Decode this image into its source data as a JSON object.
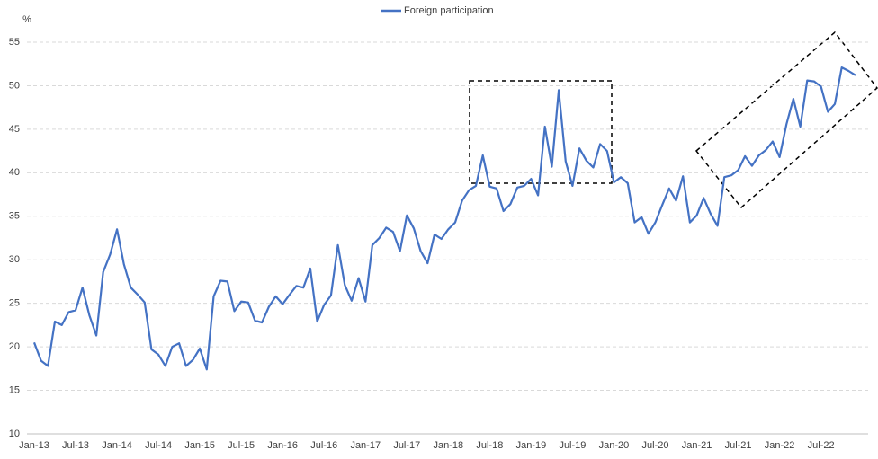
{
  "chart_data": {
    "type": "line",
    "y_label": "%",
    "categories": [
      "Jan-13",
      null,
      null,
      null,
      null,
      null,
      "Jul-13",
      null,
      null,
      null,
      null,
      null,
      "Jan-14",
      null,
      null,
      null,
      null,
      null,
      "Jul-14",
      null,
      null,
      null,
      null,
      null,
      "Jan-15",
      null,
      null,
      null,
      null,
      null,
      "Jul-15",
      null,
      null,
      null,
      null,
      null,
      "Jan-16",
      null,
      null,
      null,
      null,
      null,
      "Jul-16",
      null,
      null,
      null,
      null,
      null,
      "Jan-17",
      null,
      null,
      null,
      null,
      null,
      "Jul-17",
      null,
      null,
      null,
      null,
      null,
      "Jan-18",
      null,
      null,
      null,
      null,
      null,
      "Jul-18",
      null,
      null,
      null,
      null,
      null,
      "Jan-19",
      null,
      null,
      null,
      null,
      null,
      "Jul-19",
      null,
      null,
      null,
      null,
      null,
      "Jan-20",
      null,
      null,
      null,
      null,
      null,
      "Jul-20",
      null,
      null,
      null,
      null,
      null,
      "Jan-21",
      null,
      null,
      null,
      null,
      null,
      "Jul-21",
      null,
      null,
      null,
      null,
      null,
      "Jan-22",
      null,
      null,
      null,
      null,
      null,
      "Jul-22",
      null,
      null,
      null,
      null,
      null
    ],
    "series": [
      {
        "name": "Foreign participation",
        "color": "#4472c4",
        "values": [
          20.5,
          18.4,
          17.8,
          22.9,
          22.5,
          24.0,
          24.2,
          26.8,
          23.6,
          21.3,
          28.6,
          30.6,
          33.5,
          29.5,
          26.8,
          26.0,
          25.1,
          19.7,
          19.1,
          17.8,
          20.0,
          20.4,
          17.8,
          18.5,
          19.8,
          17.4,
          25.8,
          27.6,
          27.5,
          24.1,
          25.2,
          25.1,
          23.0,
          22.8,
          24.6,
          25.8,
          24.9,
          26.0,
          27.0,
          26.8,
          29.0,
          22.9,
          24.8,
          25.9,
          31.7,
          27.1,
          25.3,
          27.9,
          25.2,
          31.7,
          32.5,
          33.7,
          33.2,
          31.0,
          35.1,
          33.6,
          31.0,
          29.6,
          32.9,
          32.4,
          33.5,
          34.3,
          36.8,
          38.0,
          38.5,
          42.0,
          38.4,
          38.2,
          35.6,
          36.4,
          38.3,
          38.5,
          39.3,
          37.4,
          45.3,
          40.7,
          49.5,
          41.3,
          38.5,
          42.8,
          41.4,
          40.6,
          43.3,
          42.5,
          38.9,
          39.5,
          38.8,
          34.3,
          34.9,
          33.0,
          34.3,
          36.3,
          38.2,
          36.8,
          39.6,
          34.3,
          35.1,
          37.1,
          35.3,
          33.9,
          39.5,
          39.7,
          40.3,
          41.9,
          40.8,
          42.0,
          42.6,
          43.6,
          41.8,
          45.6,
          48.5,
          45.3,
          50.6,
          50.5,
          49.9,
          47.0,
          47.9,
          52.1,
          51.7,
          51.2
        ]
      }
    ],
    "ylim": [
      10,
      55
    ],
    "yticks": [
      10,
      15,
      20,
      25,
      30,
      35,
      40,
      45,
      50,
      55
    ],
    "grid": true,
    "legend": "top"
  }
}
